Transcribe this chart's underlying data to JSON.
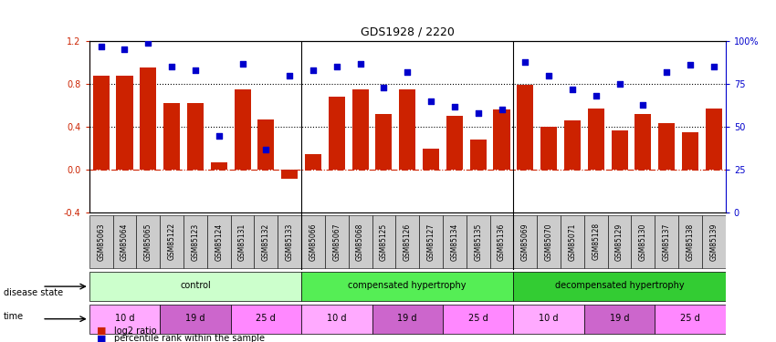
{
  "title": "GDS1928 / 2220",
  "samples": [
    "GSM85063",
    "GSM85064",
    "GSM85065",
    "GSM85122",
    "GSM85123",
    "GSM85124",
    "GSM85131",
    "GSM85132",
    "GSM85133",
    "GSM85066",
    "GSM85067",
    "GSM85068",
    "GSM85125",
    "GSM85126",
    "GSM85127",
    "GSM85134",
    "GSM85135",
    "GSM85136",
    "GSM85069",
    "GSM85070",
    "GSM85071",
    "GSM85128",
    "GSM85129",
    "GSM85130",
    "GSM85137",
    "GSM85138",
    "GSM85139"
  ],
  "log2_ratio": [
    0.88,
    0.88,
    0.95,
    0.62,
    0.62,
    0.07,
    0.75,
    0.47,
    -0.08,
    0.15,
    0.68,
    0.75,
    0.52,
    0.75,
    0.2,
    0.5,
    0.28,
    0.56,
    0.79,
    0.4,
    0.46,
    0.57,
    0.37,
    0.52,
    0.44,
    0.35,
    0.57
  ],
  "percentile": [
    97,
    95,
    99,
    85,
    83,
    45,
    87,
    37,
    80,
    83,
    85,
    87,
    73,
    82,
    65,
    62,
    58,
    60,
    88,
    80,
    72,
    68,
    75,
    63,
    82,
    86,
    85
  ],
  "bar_color": "#cc2200",
  "dot_color": "#0000cc",
  "hline_color": "#cc2200",
  "dotted_line_color": "#000000",
  "ylim_left": [
    -0.4,
    1.2
  ],
  "yticks_left": [
    -0.4,
    0.0,
    0.4,
    0.8,
    1.2
  ],
  "ylim_right": [
    0,
    100
  ],
  "yticks_right": [
    0,
    25,
    50,
    75,
    100
  ],
  "ylabel_right_labels": [
    "0",
    "25",
    "50",
    "75",
    "100%"
  ],
  "dotted_lines": [
    0.4,
    0.8
  ],
  "zero_line": 0.0,
  "separators": [
    8.5,
    17.5
  ],
  "disease_state_groups": [
    {
      "label": "control",
      "start": 0,
      "end": 9,
      "color": "#ccffcc"
    },
    {
      "label": "compensated hypertrophy",
      "start": 9,
      "end": 18,
      "color": "#55ee55"
    },
    {
      "label": "decompensated hypertrophy",
      "start": 18,
      "end": 27,
      "color": "#33cc33"
    }
  ],
  "time_groups": [
    {
      "label": "10 d",
      "start": 0,
      "end": 3,
      "color": "#ffaaff"
    },
    {
      "label": "19 d",
      "start": 3,
      "end": 6,
      "color": "#cc66cc"
    },
    {
      "label": "25 d",
      "start": 6,
      "end": 9,
      "color": "#ff88ff"
    },
    {
      "label": "10 d",
      "start": 9,
      "end": 12,
      "color": "#ffaaff"
    },
    {
      "label": "19 d",
      "start": 12,
      "end": 15,
      "color": "#cc66cc"
    },
    {
      "label": "25 d",
      "start": 15,
      "end": 18,
      "color": "#ff88ff"
    },
    {
      "label": "10 d",
      "start": 18,
      "end": 21,
      "color": "#ffaaff"
    },
    {
      "label": "19 d",
      "start": 21,
      "end": 24,
      "color": "#cc66cc"
    },
    {
      "label": "25 d",
      "start": 24,
      "end": 27,
      "color": "#ff88ff"
    }
  ],
  "disease_label": "disease state",
  "time_label": "time",
  "legend_log2": "log2 ratio",
  "legend_pct": "percentile rank within the sample",
  "bg_color": "#ffffff",
  "axis_bg": "#ffffff",
  "sample_box_color": "#cccccc"
}
